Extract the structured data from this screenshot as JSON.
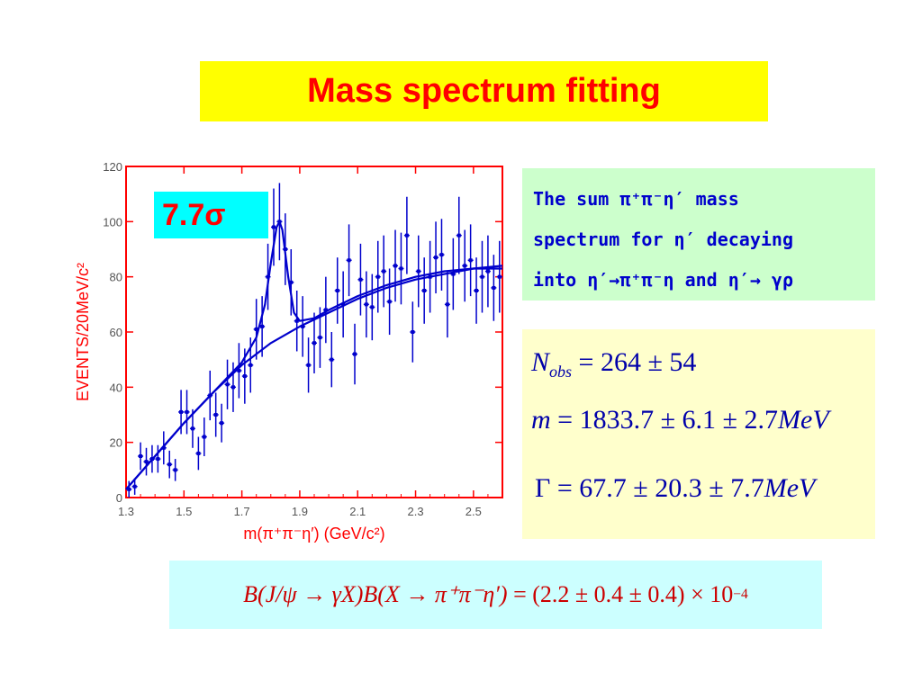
{
  "slide": {
    "title": "Mass spectrum fitting"
  },
  "annotation": {
    "significance": "7.7σ"
  },
  "description": {
    "line1": "The sum π⁺π⁻η′ mass",
    "line2": "spectrum for η′ decaying",
    "line3": "into  η′→π⁺π⁻η and η′→ γρ"
  },
  "results": {
    "nobs_symbol": "N",
    "nobs_sub": "obs",
    "nobs_value": "= 264 ± 54",
    "mass_symbol": "m",
    "mass_value": "= 1833.7 ± 6.1 ± 2.7",
    "mass_unit": "MeV",
    "width_symbol": "Γ",
    "width_value": "= 67.7 ± 20.3 ± 7.7",
    "width_unit": "MeV"
  },
  "branching": {
    "left": "B(J/ψ → γX)B(X → π⁺π⁻η′)",
    "right": "= (2.2 ± 0.4 ± 0.4) × 10",
    "exponent": "−4"
  },
  "colors": {
    "title_bg": "#ffff00",
    "title_text": "#ff0000",
    "plot_frame": "#ff0000",
    "fit_line": "#0000cc"
  },
  "chart_data": {
    "type": "scatter",
    "xlabel": "m(π⁺π⁻η′)  (GeV/c²)",
    "ylabel": "EVENTS/20MeV/c²",
    "xlim": [
      1.3,
      2.6
    ],
    "ylim": [
      0,
      120
    ],
    "xticks": [
      1.3,
      1.5,
      1.7,
      1.9,
      2.1,
      2.3,
      2.5
    ],
    "yticks": [
      0,
      20,
      40,
      60,
      80,
      100,
      120
    ],
    "grid": false,
    "series": [
      {
        "type": "points-with-errors",
        "x": [
          1.31,
          1.33,
          1.35,
          1.37,
          1.39,
          1.41,
          1.43,
          1.45,
          1.47,
          1.49,
          1.51,
          1.53,
          1.55,
          1.57,
          1.59,
          1.61,
          1.63,
          1.65,
          1.67,
          1.69,
          1.71,
          1.73,
          1.75,
          1.77,
          1.79,
          1.81,
          1.83,
          1.85,
          1.87,
          1.89,
          1.91,
          1.93,
          1.95,
          1.97,
          1.99,
          2.01,
          2.03,
          2.05,
          2.07,
          2.09,
          2.11,
          2.13,
          2.15,
          2.17,
          2.19,
          2.21,
          2.23,
          2.25,
          2.27,
          2.29,
          2.31,
          2.33,
          2.35,
          2.37,
          2.39,
          2.41,
          2.43,
          2.45,
          2.47,
          2.49,
          2.51,
          2.53,
          2.55,
          2.57,
          2.59
        ],
        "y": [
          3,
          4,
          15,
          13,
          14,
          14,
          18,
          12,
          10,
          31,
          31,
          25,
          16,
          22,
          37,
          30,
          27,
          41,
          40,
          46,
          44,
          48,
          61,
          62,
          80,
          98,
          100,
          90,
          78,
          64,
          62,
          48,
          56,
          58,
          68,
          50,
          75,
          70,
          86,
          52,
          79,
          70,
          69,
          80,
          82,
          71,
          84,
          83,
          95,
          60,
          82,
          75,
          80,
          87,
          88,
          70,
          81,
          95,
          84,
          86,
          75,
          80,
          82,
          76,
          80
        ],
        "err": [
          3,
          3,
          5,
          5,
          5,
          5,
          6,
          5,
          4,
          8,
          8,
          7,
          6,
          7,
          9,
          8,
          7,
          9,
          9,
          10,
          10,
          10,
          11,
          11,
          12,
          14,
          14,
          13,
          12,
          11,
          11,
          10,
          11,
          11,
          12,
          10,
          12,
          12,
          13,
          11,
          13,
          12,
          12,
          13,
          13,
          12,
          13,
          13,
          14,
          11,
          13,
          12,
          13,
          13,
          13,
          12,
          13,
          14,
          13,
          13,
          12,
          13,
          13,
          12,
          13
        ]
      },
      {
        "type": "line",
        "name": "fit",
        "x": [
          1.3,
          1.4,
          1.5,
          1.6,
          1.7,
          1.75,
          1.78,
          1.8,
          1.82,
          1.83,
          1.84,
          1.86,
          1.88,
          1.9,
          1.95,
          2.0,
          2.1,
          2.2,
          2.3,
          2.4,
          2.5,
          2.6
        ],
        "y": [
          3,
          15,
          27,
          38,
          49,
          58,
          70,
          85,
          98,
          100,
          97,
          80,
          67,
          64,
          65,
          68,
          73,
          77,
          80,
          82,
          83,
          83
        ]
      },
      {
        "type": "line",
        "name": "background",
        "x": [
          1.3,
          1.4,
          1.5,
          1.6,
          1.7,
          1.8,
          1.9,
          2.0,
          2.1,
          2.2,
          2.3,
          2.4,
          2.5,
          2.6
        ],
        "y": [
          3,
          15,
          27,
          38,
          48,
          56,
          62,
          67,
          72,
          76,
          79,
          81,
          83,
          84
        ]
      }
    ]
  }
}
